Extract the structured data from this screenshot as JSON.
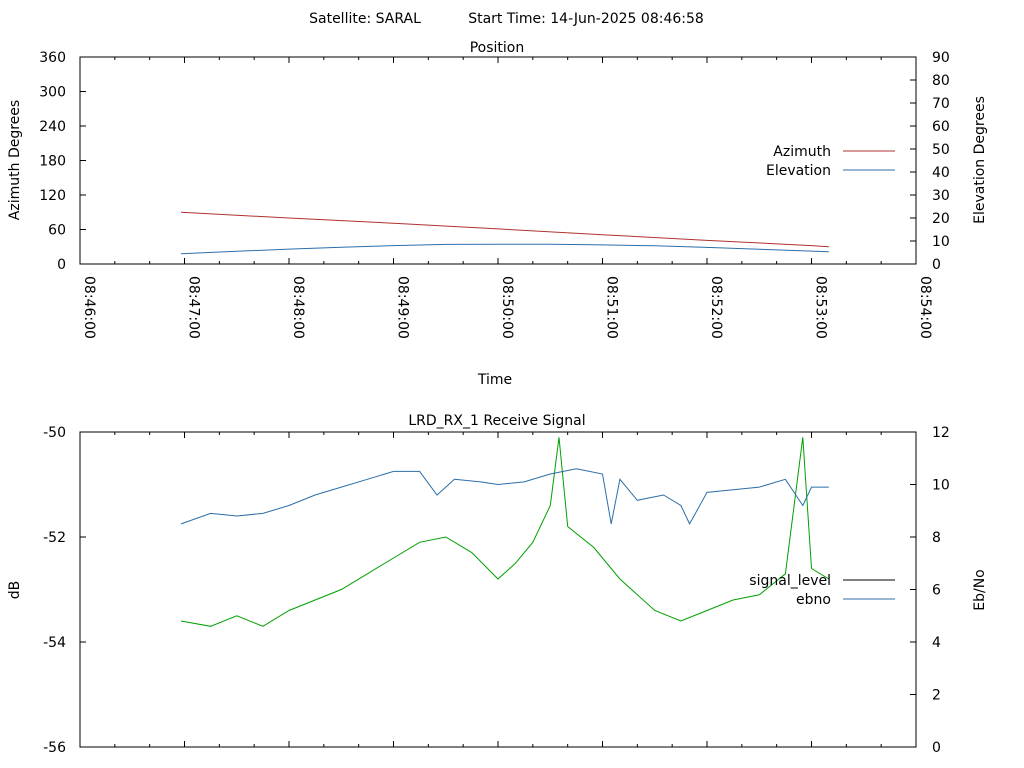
{
  "header": {
    "satellite_text": "Satellite: SARAL",
    "start_time_text": "Start Time: 14-Jun-2025 08:46:58"
  },
  "chart_data": [
    {
      "type": "line",
      "title": "Position",
      "xlabel": "Time",
      "ylabel": "Azimuth Degrees",
      "y2label": "Elevation Degrees",
      "xlim": [
        "08:46:00",
        "08:54:00"
      ],
      "x_tick_labels": [
        "08:46:00",
        "08:47:00",
        "08:48:00",
        "08:49:00",
        "08:50:00",
        "08:51:00",
        "08:52:00",
        "08:53:00",
        "08:54:00"
      ],
      "ylim": [
        0,
        360
      ],
      "y_tick_labels": [
        "0",
        "60",
        "120",
        "180",
        "240",
        "300",
        "360"
      ],
      "y2lim": [
        0,
        90
      ],
      "y2_tick_labels": [
        "0",
        "10",
        "20",
        "30",
        "40",
        "50",
        "60",
        "70",
        "80",
        "90"
      ],
      "legend_position": "right",
      "series": [
        {
          "name": "Azimuth",
          "axis": "left",
          "color": "#b03030",
          "points": [
            [
              "08:46:58",
              90
            ],
            [
              "08:48:00",
              80
            ],
            [
              "08:49:00",
              71
            ],
            [
              "08:50:00",
              61
            ],
            [
              "08:51:00",
              51
            ],
            [
              "08:52:00",
              41
            ],
            [
              "08:53:00",
              32
            ],
            [
              "08:53:10",
              30
            ]
          ]
        },
        {
          "name": "Elevation",
          "axis": "right",
          "color": "#2c6ea8",
          "points": [
            [
              "08:46:58",
              4.5
            ],
            [
              "08:47:30",
              5.5
            ],
            [
              "08:48:00",
              6.5
            ],
            [
              "08:48:30",
              7.3
            ],
            [
              "08:49:00",
              8.0
            ],
            [
              "08:49:30",
              8.5
            ],
            [
              "08:50:00",
              8.6
            ],
            [
              "08:50:30",
              8.6
            ],
            [
              "08:51:00",
              8.3
            ],
            [
              "08:51:30",
              7.9
            ],
            [
              "08:52:00",
              7.2
            ],
            [
              "08:52:30",
              6.4
            ],
            [
              "08:53:00",
              5.6
            ],
            [
              "08:53:10",
              5.3
            ]
          ]
        }
      ]
    },
    {
      "type": "line",
      "title": "LRD_RX_1 Receive Signal",
      "xlabel": "",
      "ylabel": "dB",
      "y2label": "Eb/No",
      "xlim": [
        "08:46:00",
        "08:54:00"
      ],
      "ylim": [
        -56,
        -50
      ],
      "y_tick_labels": [
        "-56",
        "-54",
        "-52",
        "-50"
      ],
      "y2lim": [
        0,
        12
      ],
      "y2_tick_labels": [
        "0",
        "2",
        "4",
        "6",
        "8",
        "10",
        "12"
      ],
      "legend_position": "right",
      "series": [
        {
          "name": "signal_level",
          "axis": "left",
          "color": "#00a000",
          "points": [
            [
              "08:46:58",
              -53.6
            ],
            [
              "08:47:15",
              -53.7
            ],
            [
              "08:47:30",
              -53.5
            ],
            [
              "08:47:45",
              -53.7
            ],
            [
              "08:48:00",
              -53.4
            ],
            [
              "08:48:15",
              -53.2
            ],
            [
              "08:48:30",
              -53.0
            ],
            [
              "08:48:45",
              -52.7
            ],
            [
              "08:49:00",
              -52.4
            ],
            [
              "08:49:15",
              -52.1
            ],
            [
              "08:49:30",
              -52.0
            ],
            [
              "08:49:45",
              -52.3
            ],
            [
              "08:50:00",
              -52.8
            ],
            [
              "08:50:10",
              -52.5
            ],
            [
              "08:50:20",
              -52.1
            ],
            [
              "08:50:30",
              -51.4
            ],
            [
              "08:50:35",
              -50.1
            ],
            [
              "08:50:40",
              -51.8
            ],
            [
              "08:50:55",
              -52.2
            ],
            [
              "08:51:10",
              -52.8
            ],
            [
              "08:51:30",
              -53.4
            ],
            [
              "08:51:45",
              -53.6
            ],
            [
              "08:52:00",
              -53.4
            ],
            [
              "08:52:15",
              -53.2
            ],
            [
              "08:52:30",
              -53.1
            ],
            [
              "08:52:45",
              -52.7
            ],
            [
              "08:52:55",
              -50.1
            ],
            [
              "08:53:00",
              -52.6
            ],
            [
              "08:53:10",
              -52.8
            ]
          ]
        },
        {
          "name": "ebno",
          "axis": "right",
          "color": "#2c6ea8",
          "points": [
            [
              "08:46:58",
              8.5
            ],
            [
              "08:47:15",
              8.9
            ],
            [
              "08:47:30",
              8.8
            ],
            [
              "08:47:45",
              8.9
            ],
            [
              "08:48:00",
              9.2
            ],
            [
              "08:48:15",
              9.6
            ],
            [
              "08:48:30",
              9.9
            ],
            [
              "08:48:45",
              10.2
            ],
            [
              "08:49:00",
              10.5
            ],
            [
              "08:49:15",
              10.5
            ],
            [
              "08:49:25",
              9.6
            ],
            [
              "08:49:35",
              10.2
            ],
            [
              "08:49:50",
              10.1
            ],
            [
              "08:50:00",
              10.0
            ],
            [
              "08:50:15",
              10.1
            ],
            [
              "08:50:30",
              10.4
            ],
            [
              "08:50:45",
              10.6
            ],
            [
              "08:51:00",
              10.4
            ],
            [
              "08:51:05",
              8.5
            ],
            [
              "08:51:10",
              10.2
            ],
            [
              "08:51:20",
              9.4
            ],
            [
              "08:51:35",
              9.6
            ],
            [
              "08:51:45",
              9.2
            ],
            [
              "08:51:50",
              8.5
            ],
            [
              "08:52:00",
              9.7
            ],
            [
              "08:52:15",
              9.8
            ],
            [
              "08:52:30",
              9.9
            ],
            [
              "08:52:45",
              10.2
            ],
            [
              "08:52:55",
              9.2
            ],
            [
              "08:53:00",
              9.9
            ],
            [
              "08:53:10",
              9.9
            ]
          ]
        }
      ]
    }
  ]
}
